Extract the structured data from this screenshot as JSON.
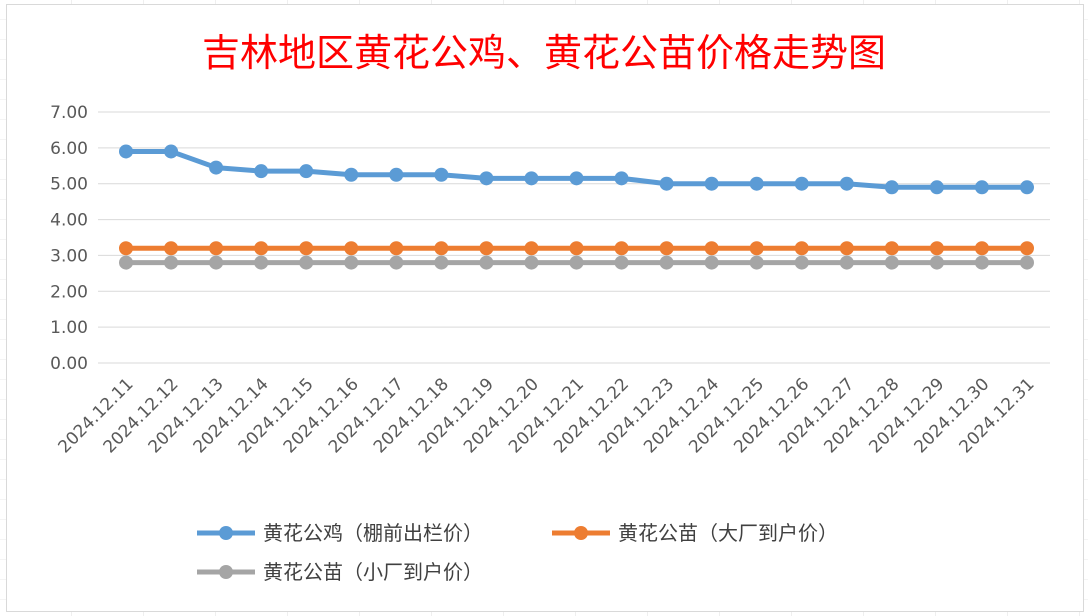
{
  "chart_data": {
    "type": "line",
    "title": "吉林地区黄花公鸡、黄花公苗价格走势图",
    "categories": [
      "2024.12.11",
      "2024.12.12",
      "2024.12.13",
      "2024.12.14",
      "2024.12.15",
      "2024.12.16",
      "2024.12.17",
      "2024.12.18",
      "2024.12.19",
      "2024.12.20",
      "2024.12.21",
      "2024.12.22",
      "2024.12.23",
      "2024.12.24",
      "2024.12.25",
      "2024.12.26",
      "2024.12.27",
      "2024.12.28",
      "2024.12.29",
      "2024.12.30",
      "2024.12.31"
    ],
    "series": [
      {
        "name": "黄花公鸡（棚前出栏价）",
        "color": "#5b9bd5",
        "values": [
          5.9,
          5.9,
          5.45,
          5.35,
          5.35,
          5.25,
          5.25,
          5.25,
          5.15,
          5.15,
          5.15,
          5.15,
          5.0,
          5.0,
          5.0,
          5.0,
          5.0,
          4.9,
          4.9,
          4.9,
          4.9
        ]
      },
      {
        "name": "黄花公苗（大厂到户价）",
        "color": "#ed7d31",
        "values": [
          3.2,
          3.2,
          3.2,
          3.2,
          3.2,
          3.2,
          3.2,
          3.2,
          3.2,
          3.2,
          3.2,
          3.2,
          3.2,
          3.2,
          3.2,
          3.2,
          3.2,
          3.2,
          3.2,
          3.2,
          3.2
        ]
      },
      {
        "name": "黄花公苗（小厂到户价）",
        "color": "#a5a5a5",
        "values": [
          2.8,
          2.8,
          2.8,
          2.8,
          2.8,
          2.8,
          2.8,
          2.8,
          2.8,
          2.8,
          2.8,
          2.8,
          2.8,
          2.8,
          2.8,
          2.8,
          2.8,
          2.8,
          2.8,
          2.8,
          2.8
        ]
      }
    ],
    "ylim": [
      0,
      7
    ],
    "yticks": [
      "0.00",
      "1.00",
      "2.00",
      "3.00",
      "4.00",
      "5.00",
      "6.00",
      "7.00"
    ],
    "grid": true,
    "legend": "bottom"
  }
}
